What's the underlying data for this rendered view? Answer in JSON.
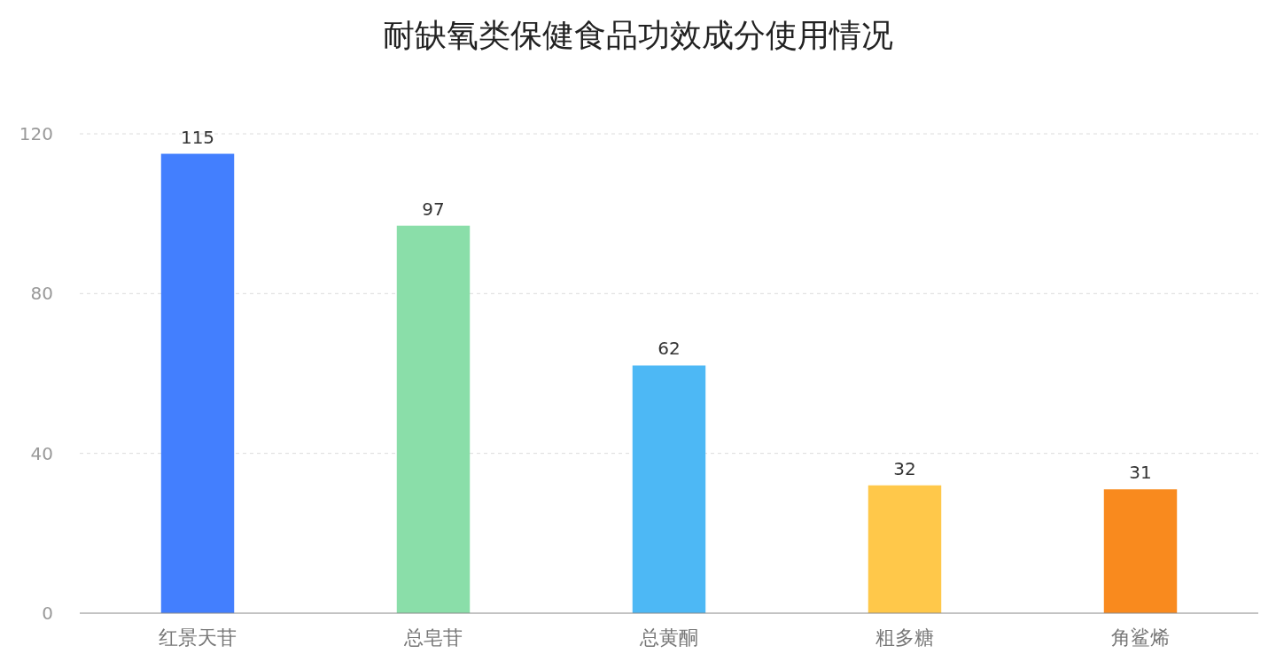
{
  "chart_data": {
    "type": "bar",
    "title": "耐缺氧类保健食品功效成分使用情况",
    "categories": [
      "红景天苷",
      "总皂苷",
      "总黄酮",
      "粗多糖",
      "角鲨烯"
    ],
    "values": [
      115,
      97,
      62,
      32,
      31
    ],
    "colors": [
      "#437ffe",
      "#8adea9",
      "#4db8f5",
      "#ffc84a",
      "#f98a1e"
    ],
    "ylim": [
      0,
      120
    ],
    "yticks": [
      0,
      40,
      80,
      120
    ],
    "grid": "y",
    "data_labels": true
  }
}
